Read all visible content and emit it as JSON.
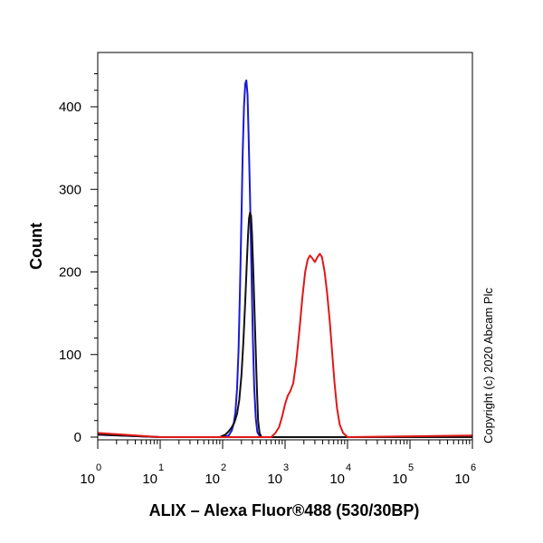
{
  "chart_data": {
    "type": "line",
    "title": "",
    "xlabel": "ALIX – Alexa Fluor®488 (530/30BP)",
    "ylabel": "Count",
    "x_scale": "log",
    "xlim": [
      1,
      1000000
    ],
    "ylim": [
      0,
      450
    ],
    "x_tick_labels": [
      {
        "base": "10",
        "exp": "0",
        "value": 1
      },
      {
        "base": "10",
        "exp": "1",
        "value": 10
      },
      {
        "base": "10",
        "exp": "2",
        "value": 100
      },
      {
        "base": "10",
        "exp": "3",
        "value": 1000
      },
      {
        "base": "10",
        "exp": "4",
        "value": 10000
      },
      {
        "base": "10",
        "exp": "5",
        "value": 100000
      },
      {
        "base": "10",
        "exp": "6",
        "value": 1000000
      }
    ],
    "y_ticks": [
      0,
      100,
      200,
      300,
      400
    ],
    "y_tick_labels": [
      "0",
      "100",
      "200",
      "300",
      "400"
    ],
    "grid": false,
    "annotation": "Copyright (c) 2020 Abcam Plc",
    "series": [
      {
        "color": "#1a1ad6",
        "points": [
          [
            1,
            3
          ],
          [
            10,
            0
          ],
          [
            100,
            0
          ],
          [
            125,
            2
          ],
          [
            140,
            8
          ],
          [
            150,
            16
          ],
          [
            160,
            30
          ],
          [
            170,
            58
          ],
          [
            180,
            105
          ],
          [
            190,
            180
          ],
          [
            200,
            265
          ],
          [
            210,
            345
          ],
          [
            220,
            400
          ],
          [
            230,
            428
          ],
          [
            240,
            432
          ],
          [
            250,
            415
          ],
          [
            260,
            370
          ],
          [
            275,
            290
          ],
          [
            290,
            200
          ],
          [
            305,
            120
          ],
          [
            320,
            60
          ],
          [
            340,
            22
          ],
          [
            360,
            6
          ],
          [
            400,
            0
          ],
          [
            1000000,
            0
          ]
        ]
      },
      {
        "color": "#111111",
        "points": [
          [
            1,
            3
          ],
          [
            10,
            0
          ],
          [
            90,
            0
          ],
          [
            110,
            3
          ],
          [
            125,
            7
          ],
          [
            140,
            12
          ],
          [
            155,
            18
          ],
          [
            170,
            28
          ],
          [
            185,
            45
          ],
          [
            200,
            75
          ],
          [
            215,
            115
          ],
          [
            230,
            165
          ],
          [
            245,
            215
          ],
          [
            255,
            245
          ],
          [
            265,
            265
          ],
          [
            275,
            272
          ],
          [
            285,
            268
          ],
          [
            295,
            248
          ],
          [
            310,
            200
          ],
          [
            325,
            150
          ],
          [
            340,
            100
          ],
          [
            355,
            55
          ],
          [
            370,
            20
          ],
          [
            390,
            5
          ],
          [
            420,
            0
          ],
          [
            1000000,
            0
          ]
        ]
      },
      {
        "color": "#e01818",
        "points": [
          [
            1,
            5
          ],
          [
            10,
            0
          ],
          [
            600,
            0
          ],
          [
            700,
            5
          ],
          [
            800,
            12
          ],
          [
            900,
            25
          ],
          [
            1000,
            40
          ],
          [
            1100,
            50
          ],
          [
            1200,
            55
          ],
          [
            1350,
            65
          ],
          [
            1500,
            90
          ],
          [
            1700,
            130
          ],
          [
            1900,
            170
          ],
          [
            2100,
            200
          ],
          [
            2300,
            215
          ],
          [
            2500,
            220
          ],
          [
            2700,
            217
          ],
          [
            3000,
            212
          ],
          [
            3300,
            218
          ],
          [
            3600,
            222
          ],
          [
            3900,
            218
          ],
          [
            4300,
            200
          ],
          [
            4700,
            175
          ],
          [
            5200,
            140
          ],
          [
            5700,
            100
          ],
          [
            6200,
            65
          ],
          [
            6800,
            35
          ],
          [
            7500,
            15
          ],
          [
            8500,
            5
          ],
          [
            10000,
            0
          ],
          [
            1000000,
            2
          ]
        ]
      }
    ]
  }
}
